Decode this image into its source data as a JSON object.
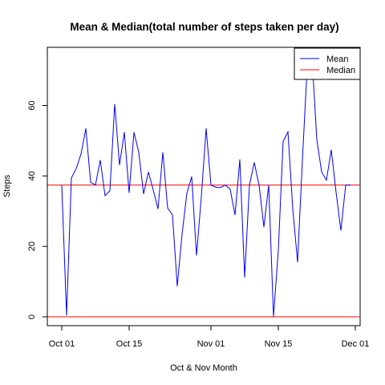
{
  "chart_data": {
    "type": "line",
    "title": "Mean & Median(total number of steps taken per day)",
    "xlabel": "Oct & Nov Month",
    "ylabel": "Steps",
    "xlim": [
      "2012-09-28",
      "2012-12-02"
    ],
    "ylim": [
      -2.5,
      76.5
    ],
    "x_ticks": [
      {
        "date": "2012-10-01",
        "label": "Oct 01"
      },
      {
        "date": "2012-10-15",
        "label": "Oct 15"
      },
      {
        "date": "2012-11-01",
        "label": "Nov 01"
      },
      {
        "date": "2012-11-15",
        "label": "Nov 15"
      },
      {
        "date": "2012-12-01",
        "label": "Dec 01"
      }
    ],
    "y_ticks": [
      0,
      20,
      40,
      60
    ],
    "grid": false,
    "legend_position": "top-right",
    "series": [
      {
        "name": "Mean",
        "color": "#0000ff",
        "style": "line",
        "x": [
          "2012-10-01",
          "2012-10-02",
          "2012-10-03",
          "2012-10-04",
          "2012-10-05",
          "2012-10-06",
          "2012-10-07",
          "2012-10-08",
          "2012-10-09",
          "2012-10-10",
          "2012-10-11",
          "2012-10-12",
          "2012-10-13",
          "2012-10-14",
          "2012-10-15",
          "2012-10-16",
          "2012-10-17",
          "2012-10-18",
          "2012-10-19",
          "2012-10-20",
          "2012-10-21",
          "2012-10-22",
          "2012-10-23",
          "2012-10-24",
          "2012-10-25",
          "2012-10-26",
          "2012-10-27",
          "2012-10-28",
          "2012-10-29",
          "2012-10-30",
          "2012-10-31",
          "2012-11-01",
          "2012-11-02",
          "2012-11-03",
          "2012-11-04",
          "2012-11-05",
          "2012-11-06",
          "2012-11-07",
          "2012-11-08",
          "2012-11-09",
          "2012-11-10",
          "2012-11-11",
          "2012-11-12",
          "2012-11-13",
          "2012-11-14",
          "2012-11-15",
          "2012-11-16",
          "2012-11-17",
          "2012-11-18",
          "2012-11-19",
          "2012-11-20",
          "2012-11-21",
          "2012-11-22",
          "2012-11-23",
          "2012-11-24",
          "2012-11-25",
          "2012-11-26",
          "2012-11-27",
          "2012-11-28",
          "2012-11-29",
          "2012-11-30"
        ],
        "values": [
          37.4,
          0.4,
          39.4,
          42.1,
          46.2,
          53.5,
          38.2,
          37.4,
          44.5,
          34.4,
          35.8,
          60.4,
          43.1,
          52.4,
          35.2,
          52.4,
          46.7,
          34.9,
          41.1,
          36.1,
          30.6,
          46.7,
          30.9,
          29.0,
          8.7,
          23.5,
          35.1,
          39.8,
          17.4,
          34.1,
          53.5,
          37.4,
          36.8,
          36.7,
          37.4,
          36.2,
          28.9,
          44.7,
          11.2,
          37.4,
          43.8,
          37.4,
          25.5,
          37.4,
          0.1,
          18.9,
          49.8,
          52.5,
          30.7,
          15.5,
          44.4,
          70.9,
          73.6,
          50.3,
          41.1,
          38.8,
          47.4,
          35.4,
          24.5,
          37.4,
          37.4
        ]
      },
      {
        "name": "Median",
        "color": "#ff0000",
        "style": "hline",
        "values": [
          37.4,
          0
        ]
      }
    ]
  }
}
